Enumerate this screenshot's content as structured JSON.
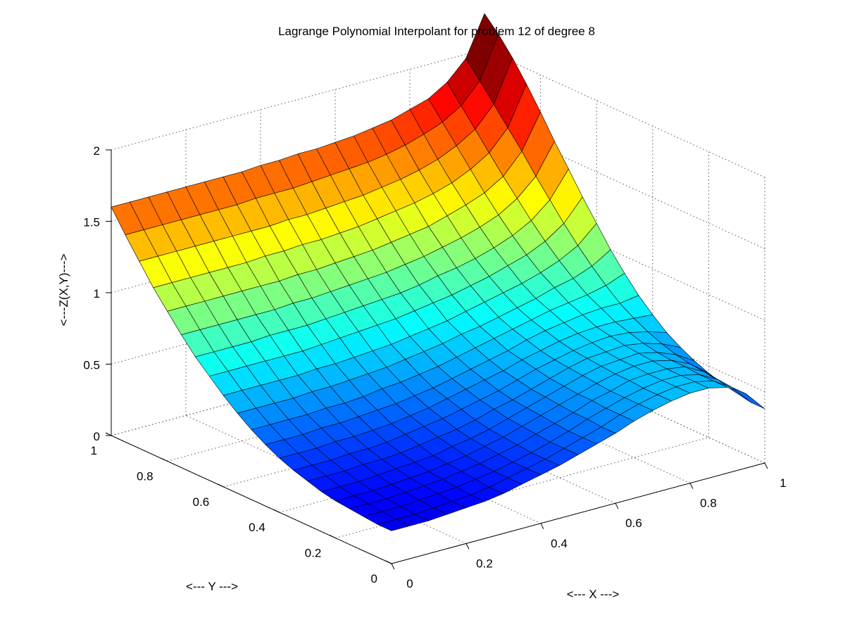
{
  "chart_data": {
    "type": "surface",
    "title": "Lagrange Polynomial Interpolant for problem 12 of degree 8",
    "xlabel": "<--- X --->",
    "ylabel": "<--- Y --->",
    "zlabel": "<---Z(X,Y)--->",
    "xlim": [
      0,
      1
    ],
    "ylim": [
      0,
      1
    ],
    "zlim": [
      0,
      2
    ],
    "x_ticks": [
      "0",
      "0.2",
      "0.4",
      "0.6",
      "0.8",
      "1"
    ],
    "y_ticks": [
      "0",
      "0.2",
      "0.4",
      "0.6",
      "0.8",
      "1"
    ],
    "z_ticks": [
      "0",
      "0.5",
      "1",
      "1.5",
      "2"
    ],
    "grid": true,
    "colormap": "jet",
    "mesh_resolution": 21,
    "z_grid": [
      [
        0.23,
        0.23,
        0.23,
        0.24,
        0.25,
        0.26,
        0.28,
        0.31,
        0.34,
        0.37,
        0.41,
        0.45,
        0.49,
        0.54,
        0.58,
        0.61,
        0.63,
        0.63,
        0.6,
        0.52,
        0.38
      ],
      [
        0.23,
        0.23,
        0.23,
        0.24,
        0.25,
        0.26,
        0.28,
        0.31,
        0.34,
        0.37,
        0.41,
        0.45,
        0.49,
        0.54,
        0.58,
        0.61,
        0.63,
        0.63,
        0.6,
        0.52,
        0.38
      ],
      [
        0.24,
        0.24,
        0.24,
        0.25,
        0.26,
        0.27,
        0.29,
        0.31,
        0.34,
        0.37,
        0.41,
        0.45,
        0.5,
        0.54,
        0.58,
        0.61,
        0.63,
        0.63,
        0.6,
        0.53,
        0.4
      ],
      [
        0.25,
        0.25,
        0.25,
        0.26,
        0.27,
        0.28,
        0.3,
        0.32,
        0.35,
        0.38,
        0.42,
        0.46,
        0.5,
        0.55,
        0.58,
        0.62,
        0.63,
        0.63,
        0.61,
        0.54,
        0.42
      ],
      [
        0.26,
        0.26,
        0.26,
        0.27,
        0.28,
        0.29,
        0.31,
        0.33,
        0.36,
        0.39,
        0.43,
        0.47,
        0.51,
        0.55,
        0.59,
        0.62,
        0.64,
        0.64,
        0.61,
        0.55,
        0.45
      ],
      [
        0.28,
        0.28,
        0.28,
        0.29,
        0.3,
        0.31,
        0.32,
        0.35,
        0.37,
        0.4,
        0.44,
        0.48,
        0.52,
        0.56,
        0.6,
        0.63,
        0.64,
        0.65,
        0.62,
        0.57,
        0.49
      ],
      [
        0.31,
        0.31,
        0.31,
        0.32,
        0.32,
        0.33,
        0.35,
        0.37,
        0.39,
        0.42,
        0.46,
        0.49,
        0.53,
        0.57,
        0.61,
        0.64,
        0.65,
        0.66,
        0.64,
        0.6,
        0.54
      ],
      [
        0.34,
        0.34,
        0.34,
        0.35,
        0.35,
        0.36,
        0.38,
        0.4,
        0.42,
        0.45,
        0.48,
        0.51,
        0.55,
        0.59,
        0.62,
        0.65,
        0.67,
        0.68,
        0.67,
        0.64,
        0.6
      ],
      [
        0.38,
        0.38,
        0.38,
        0.39,
        0.39,
        0.4,
        0.41,
        0.43,
        0.45,
        0.48,
        0.51,
        0.54,
        0.57,
        0.61,
        0.64,
        0.67,
        0.69,
        0.7,
        0.7,
        0.69,
        0.68
      ],
      [
        0.43,
        0.43,
        0.43,
        0.44,
        0.44,
        0.45,
        0.46,
        0.47,
        0.49,
        0.51,
        0.54,
        0.57,
        0.6,
        0.63,
        0.67,
        0.7,
        0.72,
        0.74,
        0.75,
        0.75,
        0.77
      ],
      [
        0.49,
        0.49,
        0.49,
        0.49,
        0.5,
        0.5,
        0.51,
        0.53,
        0.54,
        0.56,
        0.58,
        0.61,
        0.64,
        0.67,
        0.7,
        0.73,
        0.76,
        0.78,
        0.8,
        0.83,
        0.88
      ],
      [
        0.56,
        0.56,
        0.56,
        0.56,
        0.57,
        0.57,
        0.58,
        0.59,
        0.6,
        0.62,
        0.64,
        0.66,
        0.69,
        0.71,
        0.74,
        0.77,
        0.8,
        0.84,
        0.87,
        0.92,
        1.0
      ],
      [
        0.64,
        0.64,
        0.64,
        0.64,
        0.64,
        0.65,
        0.65,
        0.66,
        0.67,
        0.68,
        0.7,
        0.72,
        0.74,
        0.77,
        0.8,
        0.83,
        0.86,
        0.9,
        0.95,
        1.02,
        1.14
      ],
      [
        0.73,
        0.73,
        0.73,
        0.73,
        0.73,
        0.73,
        0.74,
        0.75,
        0.76,
        0.77,
        0.78,
        0.8,
        0.82,
        0.84,
        0.87,
        0.9,
        0.94,
        0.98,
        1.04,
        1.13,
        1.28
      ],
      [
        0.82,
        0.82,
        0.82,
        0.82,
        0.83,
        0.83,
        0.83,
        0.84,
        0.85,
        0.86,
        0.87,
        0.88,
        0.9,
        0.93,
        0.95,
        0.98,
        1.02,
        1.07,
        1.14,
        1.25,
        1.43
      ],
      [
        0.93,
        0.93,
        0.93,
        0.93,
        0.93,
        0.93,
        0.94,
        0.94,
        0.95,
        0.96,
        0.97,
        0.98,
        1.0,
        1.02,
        1.05,
        1.08,
        1.12,
        1.17,
        1.25,
        1.37,
        1.58
      ],
      [
        1.05,
        1.05,
        1.05,
        1.05,
        1.05,
        1.05,
        1.05,
        1.06,
        1.06,
        1.07,
        1.08,
        1.09,
        1.11,
        1.13,
        1.15,
        1.19,
        1.23,
        1.28,
        1.36,
        1.5,
        1.74
      ],
      [
        1.17,
        1.17,
        1.17,
        1.17,
        1.17,
        1.17,
        1.18,
        1.18,
        1.19,
        1.19,
        1.2,
        1.21,
        1.23,
        1.25,
        1.27,
        1.3,
        1.34,
        1.4,
        1.48,
        1.62,
        1.89
      ],
      [
        1.31,
        1.31,
        1.31,
        1.31,
        1.31,
        1.31,
        1.31,
        1.31,
        1.32,
        1.32,
        1.33,
        1.34,
        1.35,
        1.37,
        1.39,
        1.42,
        1.46,
        1.52,
        1.6,
        1.74,
        2.03
      ],
      [
        1.45,
        1.45,
        1.45,
        1.45,
        1.45,
        1.45,
        1.45,
        1.46,
        1.46,
        1.46,
        1.47,
        1.48,
        1.49,
        1.5,
        1.52,
        1.55,
        1.59,
        1.64,
        1.72,
        1.86,
        2.15
      ],
      [
        1.6,
        1.6,
        1.6,
        1.6,
        1.6,
        1.6,
        1.6,
        1.6,
        1.61,
        1.61,
        1.62,
        1.62,
        1.63,
        1.64,
        1.66,
        1.68,
        1.72,
        1.76,
        1.84,
        1.97,
        2.25
      ]
    ]
  }
}
